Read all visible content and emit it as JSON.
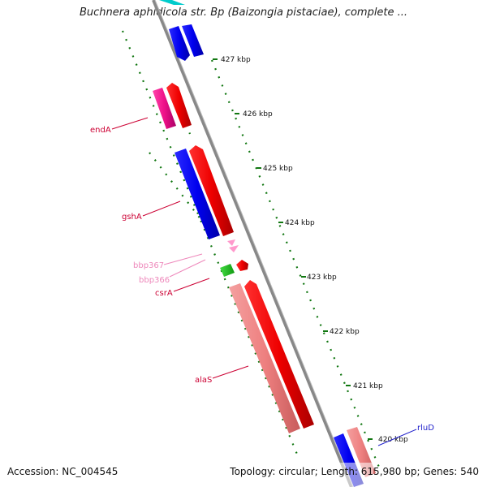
{
  "title": "Buchnera aphidicola str. Bp (Baizongia pistaciae), complete ...",
  "accession": "Accession: NC_004545",
  "summary": "Topology: circular; Length: 615,980 bp; Genes: 540",
  "ticks": [
    "427 kbp",
    "426 kbp",
    "425 kbp",
    "424 kbp",
    "423 kbp",
    "422 kbp",
    "421 kbp",
    "420 kbp"
  ],
  "genes": {
    "endA": {
      "name": "endA",
      "color": "#cc0033"
    },
    "gshA": {
      "name": "gshA",
      "color": "#cc0033"
    },
    "bbp367": {
      "name": "bbp367",
      "color": "#ee88bb"
    },
    "bbp366": {
      "name": "bbp366",
      "color": "#ee88bb"
    },
    "csrA": {
      "name": "csrA",
      "color": "#cc0033"
    },
    "alaS": {
      "name": "alaS",
      "color": "#cc0033"
    },
    "rluD": {
      "name": "rluD",
      "color": "#2222cc"
    }
  },
  "colors": {
    "backbone": "#888888",
    "cds_forward": "#ff0000",
    "cds_reverse": "#0000ff",
    "cds_light": "#f08080",
    "pseudo": "#ee1188",
    "rna": "#22bb22",
    "misc": "#ff99cc",
    "tick": "#117711"
  }
}
